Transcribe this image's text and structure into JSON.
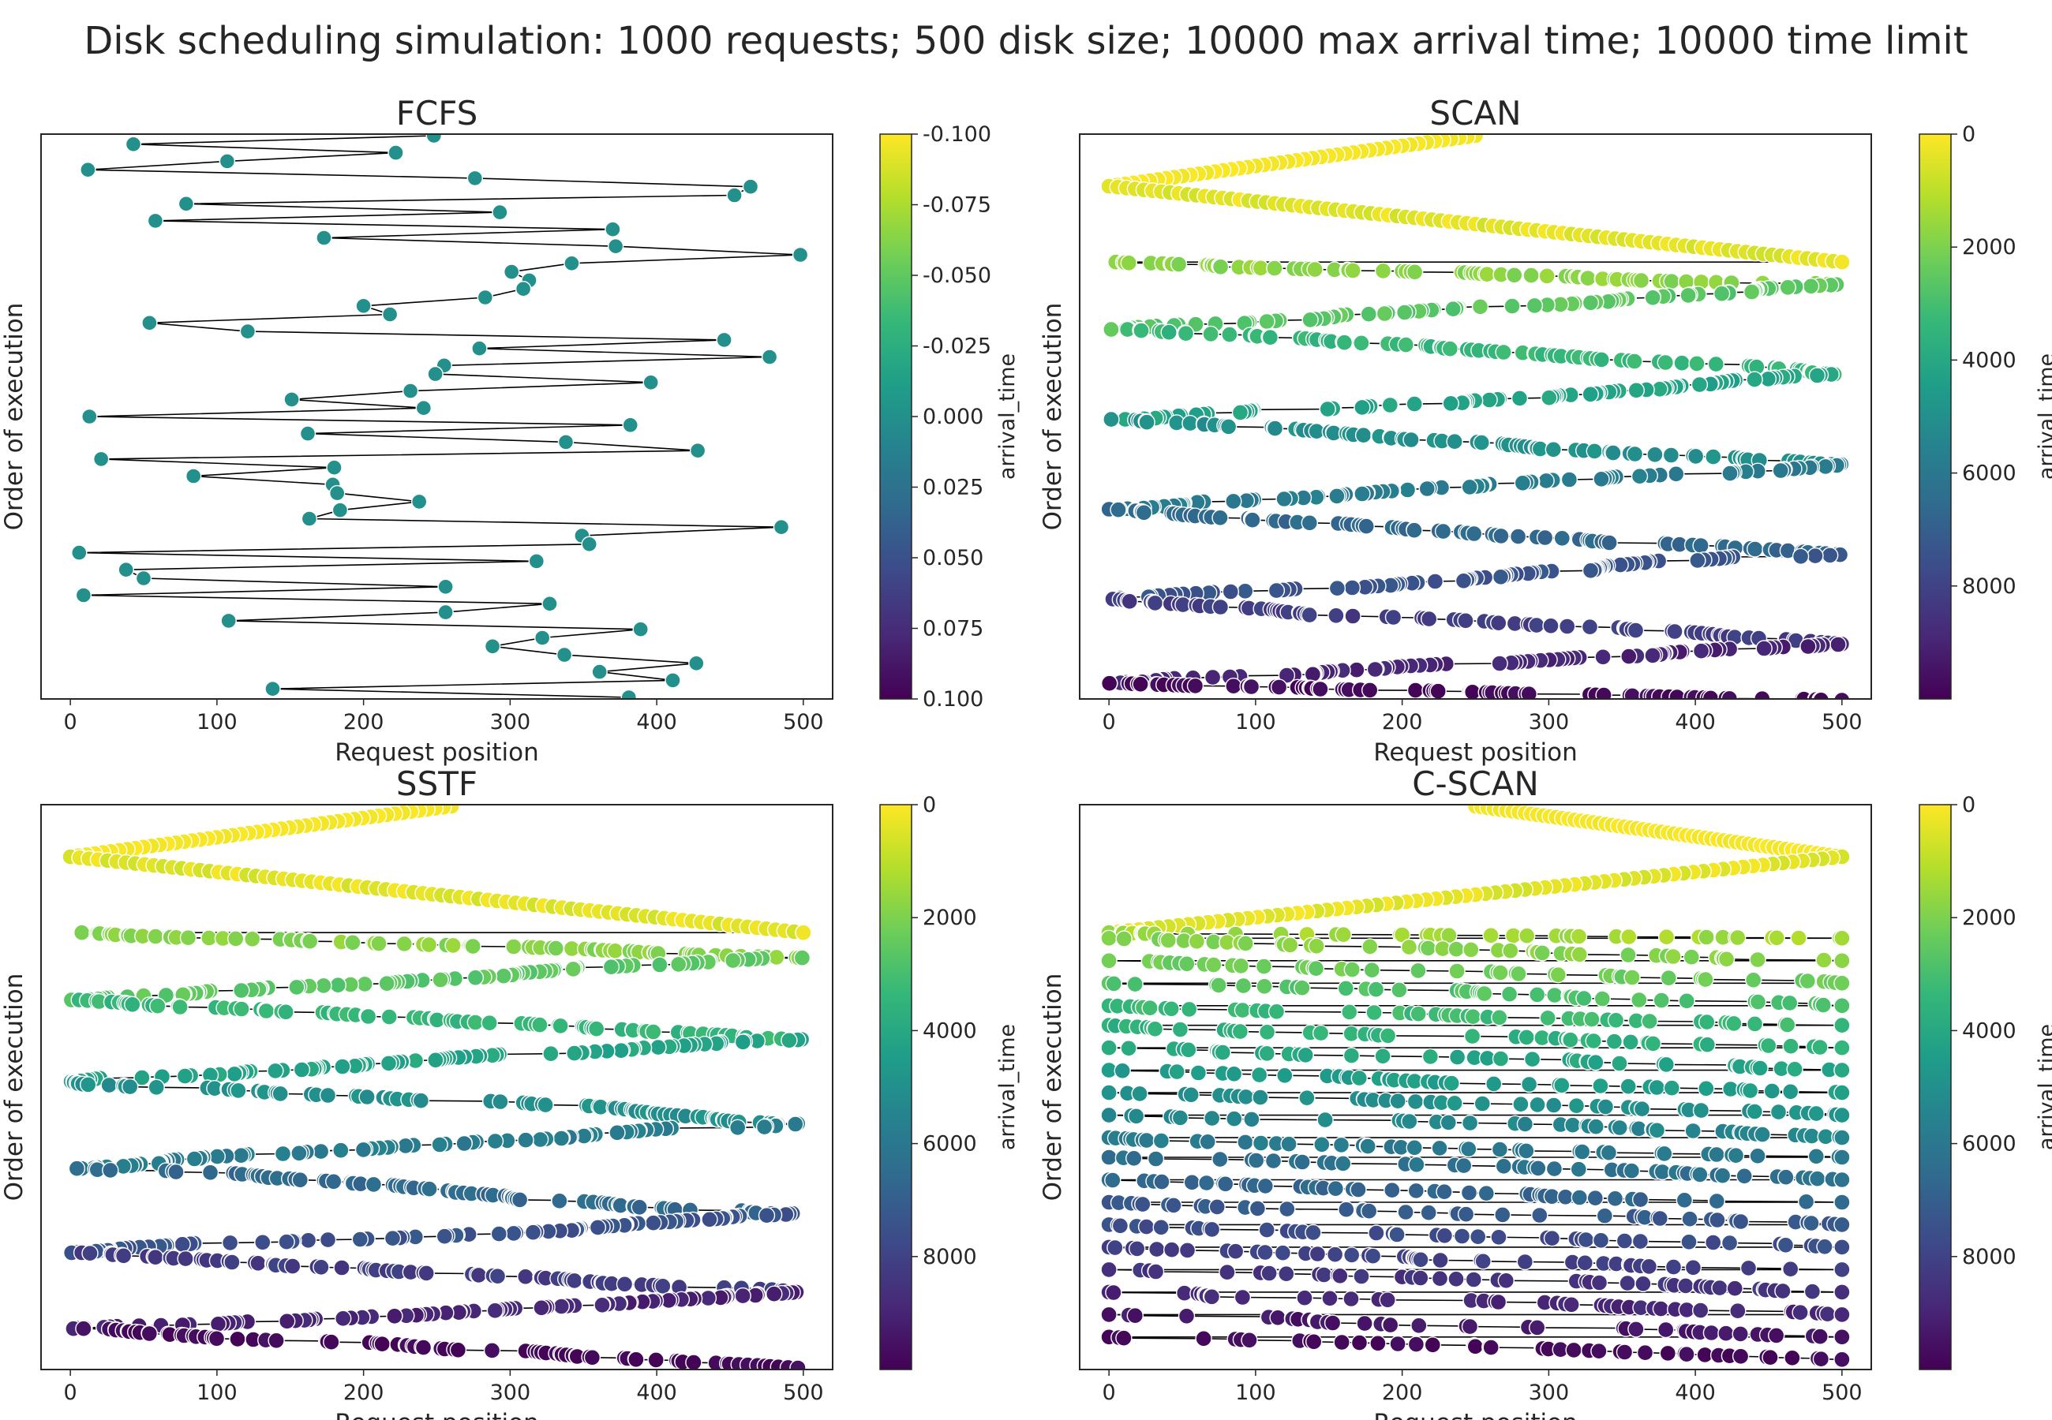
{
  "figure": {
    "title": "Disk scheduling simulation: 1000 requests; 500 disk size; 10000 max arrival time; 10000 time limit"
  },
  "colormap": {
    "name": "viridis",
    "stops": [
      "#440154",
      "#482878",
      "#3e4989",
      "#31688e",
      "#26828e",
      "#1f9e89",
      "#35b779",
      "#6ece58",
      "#b5de2b",
      "#fde725"
    ]
  },
  "chart_data": [
    {
      "type": "scatter",
      "title": "FCFS",
      "xlabel": "Request position",
      "ylabel": "Order of execution",
      "xlim": [
        -20,
        520
      ],
      "xticks": [
        0,
        100,
        200,
        300,
        400,
        500
      ],
      "colorbar": {
        "label": "arrival_time",
        "range": [
          -0.1,
          0.1
        ],
        "ticks": [
          "-0.100",
          "-0.075",
          "-0.050",
          "-0.025",
          "0.000",
          "0.025",
          "0.050",
          "0.075",
          "0.100"
        ],
        "order": "top-max"
      },
      "connected": true,
      "grid": false,
      "x": [
        248,
        43,
        222,
        107,
        12,
        276,
        464,
        453,
        79,
        293,
        58,
        370,
        173,
        372,
        498,
        342,
        301,
        313,
        309,
        283,
        200,
        218,
        54,
        121,
        446,
        279,
        477,
        255,
        249,
        396,
        232,
        151,
        241,
        13,
        382,
        162,
        338,
        428,
        21,
        180,
        84,
        179,
        182,
        238,
        184,
        163,
        485,
        349,
        354,
        6,
        318,
        38,
        50,
        256,
        9,
        327,
        256,
        108,
        389,
        322,
        288,
        337,
        427,
        361,
        411,
        138,
        381
      ],
      "color_value": 0.0
    },
    {
      "type": "scatter",
      "title": "SCAN",
      "xlabel": "Request position",
      "ylabel": "Order of execution",
      "xlim": [
        -20,
        520
      ],
      "xticks": [
        0,
        100,
        200,
        300,
        400,
        500
      ],
      "colorbar": {
        "label": "arrival_time",
        "range": [
          0,
          10000
        ],
        "ticks": [
          "0",
          "2000",
          "4000",
          "6000",
          "8000"
        ]
      },
      "connected": true,
      "grid": false,
      "seed": 11,
      "first_sweep": {
        "from": 250,
        "to": 0,
        "count": 46
      },
      "second_sweep": {
        "from": 0,
        "to": 500,
        "count": 85
      },
      "pass_bands": [
        0.265,
        0.345,
        0.425,
        0.505,
        0.585,
        0.665,
        0.745,
        0.825,
        0.905,
        0.975,
        1.005
      ],
      "pass_direction": "alternating",
      "points_per_pass": 80,
      "approx_total_points": 1000
    },
    {
      "type": "scatter",
      "title": "SSTF",
      "xlabel": "Request position",
      "ylabel": "Order of execution",
      "xlim": [
        -20,
        520
      ],
      "xticks": [
        0,
        100,
        200,
        300,
        400,
        500
      ],
      "colorbar": {
        "label": "arrival_time",
        "range": [
          0,
          10000
        ],
        "ticks": [
          "0",
          "2000",
          "4000",
          "6000",
          "8000"
        ]
      },
      "connected": true,
      "grid": false,
      "seed": 23,
      "first_sweep": {
        "from": 260,
        "to": 0,
        "count": 48
      },
      "second_sweep": {
        "from": 0,
        "to": 500,
        "count": 80
      },
      "pass_bands": [
        0.27,
        0.345,
        0.415,
        0.49,
        0.565,
        0.645,
        0.725,
        0.795,
        0.865,
        0.93,
        1.0
      ],
      "pass_direction": "alternating",
      "points_per_pass": 80,
      "approx_total_points": 1000
    },
    {
      "type": "scatter",
      "title": "C-SCAN",
      "xlabel": "Request position",
      "ylabel": "Order of execution",
      "xlim": [
        -20,
        520
      ],
      "xticks": [
        0,
        100,
        200,
        300,
        400,
        500
      ],
      "colorbar": {
        "label": "arrival_time",
        "range": [
          0,
          10000
        ],
        "ticks": [
          "0",
          "2000",
          "4000",
          "6000",
          "8000"
        ]
      },
      "connected": true,
      "grid": false,
      "seed": 37,
      "first_sweep": {
        "from": 250,
        "to": 500,
        "count": 60
      },
      "second_sweep": {
        "from": 500,
        "to": 0,
        "count": 75
      },
      "pass_bands": [
        0.235,
        0.275,
        0.315,
        0.355,
        0.39,
        0.43,
        0.47,
        0.51,
        0.55,
        0.59,
        0.625,
        0.665,
        0.705,
        0.745,
        0.785,
        0.825,
        0.865,
        0.905,
        0.945,
        0.985
      ],
      "pass_direction": "wrap",
      "points_per_pass": 42,
      "approx_total_points": 1000
    }
  ]
}
